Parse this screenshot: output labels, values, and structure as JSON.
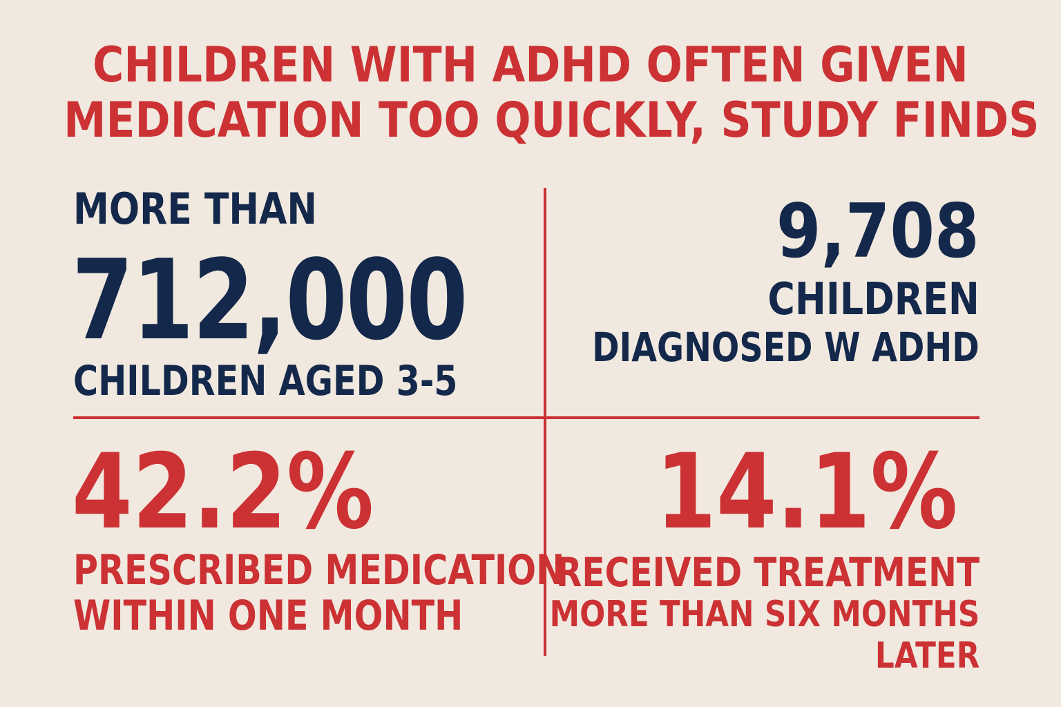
{
  "headline": {
    "line1": "CHILDREN WITH ADHD OFTEN GIVEN",
    "line2": "MEDICATION TOO QUICKLY, STUDY FINDS"
  },
  "stats": {
    "top_left": {
      "prefix": "MORE THAN",
      "value": "712,000",
      "label": "CHILDREN AGED 3-5"
    },
    "top_right": {
      "value": "9,708",
      "label_line1": "CHILDREN",
      "label_line2": "DIAGNOSED W ADHD"
    },
    "bottom_left": {
      "value": "42.2%",
      "label_line1": "PRESCRIBED MEDICATION",
      "label_line2": "WITHIN ONE MONTH"
    },
    "bottom_right": {
      "value": "14.1%",
      "label_line1": "RECEIVED TREATMENT",
      "label_line2": "MORE THAN SIX MONTHS",
      "label_line3": "LATER"
    }
  },
  "colors": {
    "background": "#f1e9e0",
    "accent_red": "#cc3133",
    "navy": "#13284a"
  }
}
